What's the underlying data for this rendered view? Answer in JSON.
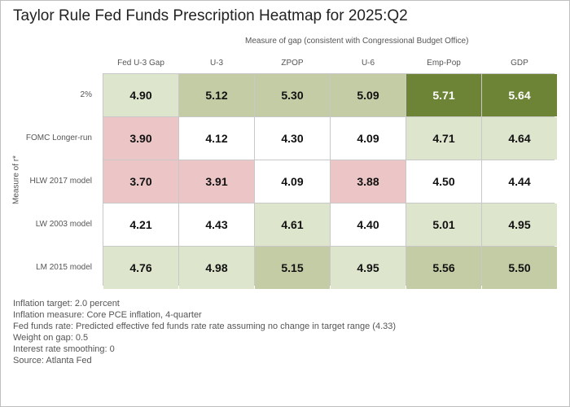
{
  "title": "Taylor Rule Fed Funds Prescription Heatmap for 2025:Q2",
  "chart_data": {
    "type": "heatmap",
    "title": "Taylor Rule Fed Funds Prescription Heatmap for 2025:Q2",
    "xlabel": "Measure of gap (consistent with Congressional Budget Office)",
    "ylabel": "Measure of r*",
    "columns": [
      "Fed U-3 Gap",
      "U-3",
      "ZPOP",
      "U-6",
      "Emp-Pop",
      "GDP"
    ],
    "rows": [
      "2%",
      "FOMC Longer-run",
      "HLW 2017 model",
      "LW 2003 model",
      "LM 2015 model"
    ],
    "values": [
      [
        4.9,
        5.12,
        5.3,
        5.09,
        5.71,
        5.64
      ],
      [
        3.9,
        4.12,
        4.3,
        4.09,
        4.71,
        4.64
      ],
      [
        3.7,
        3.91,
        4.09,
        3.88,
        4.5,
        4.44
      ],
      [
        4.21,
        4.43,
        4.61,
        4.4,
        5.01,
        4.95
      ],
      [
        4.76,
        4.98,
        5.15,
        4.95,
        5.56,
        5.5
      ]
    ],
    "labels": [
      [
        "4.90",
        "5.12",
        "5.30",
        "5.09",
        "5.71",
        "5.64"
      ],
      [
        "3.90",
        "4.12",
        "4.30",
        "4.09",
        "4.71",
        "4.64"
      ],
      [
        "3.70",
        "3.91",
        "4.09",
        "3.88",
        "4.50",
        "4.44"
      ],
      [
        "4.21",
        "4.43",
        "4.61",
        "4.40",
        "5.01",
        "4.95"
      ],
      [
        "4.76",
        "4.98",
        "5.15",
        "4.95",
        "5.56",
        "5.50"
      ]
    ],
    "reference_value": 4.33,
    "color_scale": {
      "low": "#ecc6c6",
      "neutral": "#ffffff",
      "light_green": "#dde5cd",
      "mid_green": "#c3cca4",
      "dark_green": "#6d8437",
      "bins": [
        {
          "max": 3.95,
          "color": "#ecc6c6"
        },
        {
          "max": 4.55,
          "color": "#ffffff"
        },
        {
          "max": 5.05,
          "color": "#dde5cd"
        },
        {
          "max": 5.6,
          "color": "#c3cca4"
        },
        {
          "max": 99,
          "color": "#6d8437"
        }
      ],
      "light_text_above": 5.6
    }
  },
  "notes": [
    "Inflation target: 2.0 percent",
    "Inflation measure: Core PCE inflation, 4-quarter",
    "Fed funds rate: Predicted effective fed funds rate rate assuming no change in target range (4.33)",
    "Weight on gap: 0.5",
    "Interest rate smoothing: 0",
    "Source: Atlanta Fed"
  ],
  "colors": {
    "text_dark": "#111111",
    "text_light": "#ffffff",
    "grid_line": "#c8c8c8"
  }
}
